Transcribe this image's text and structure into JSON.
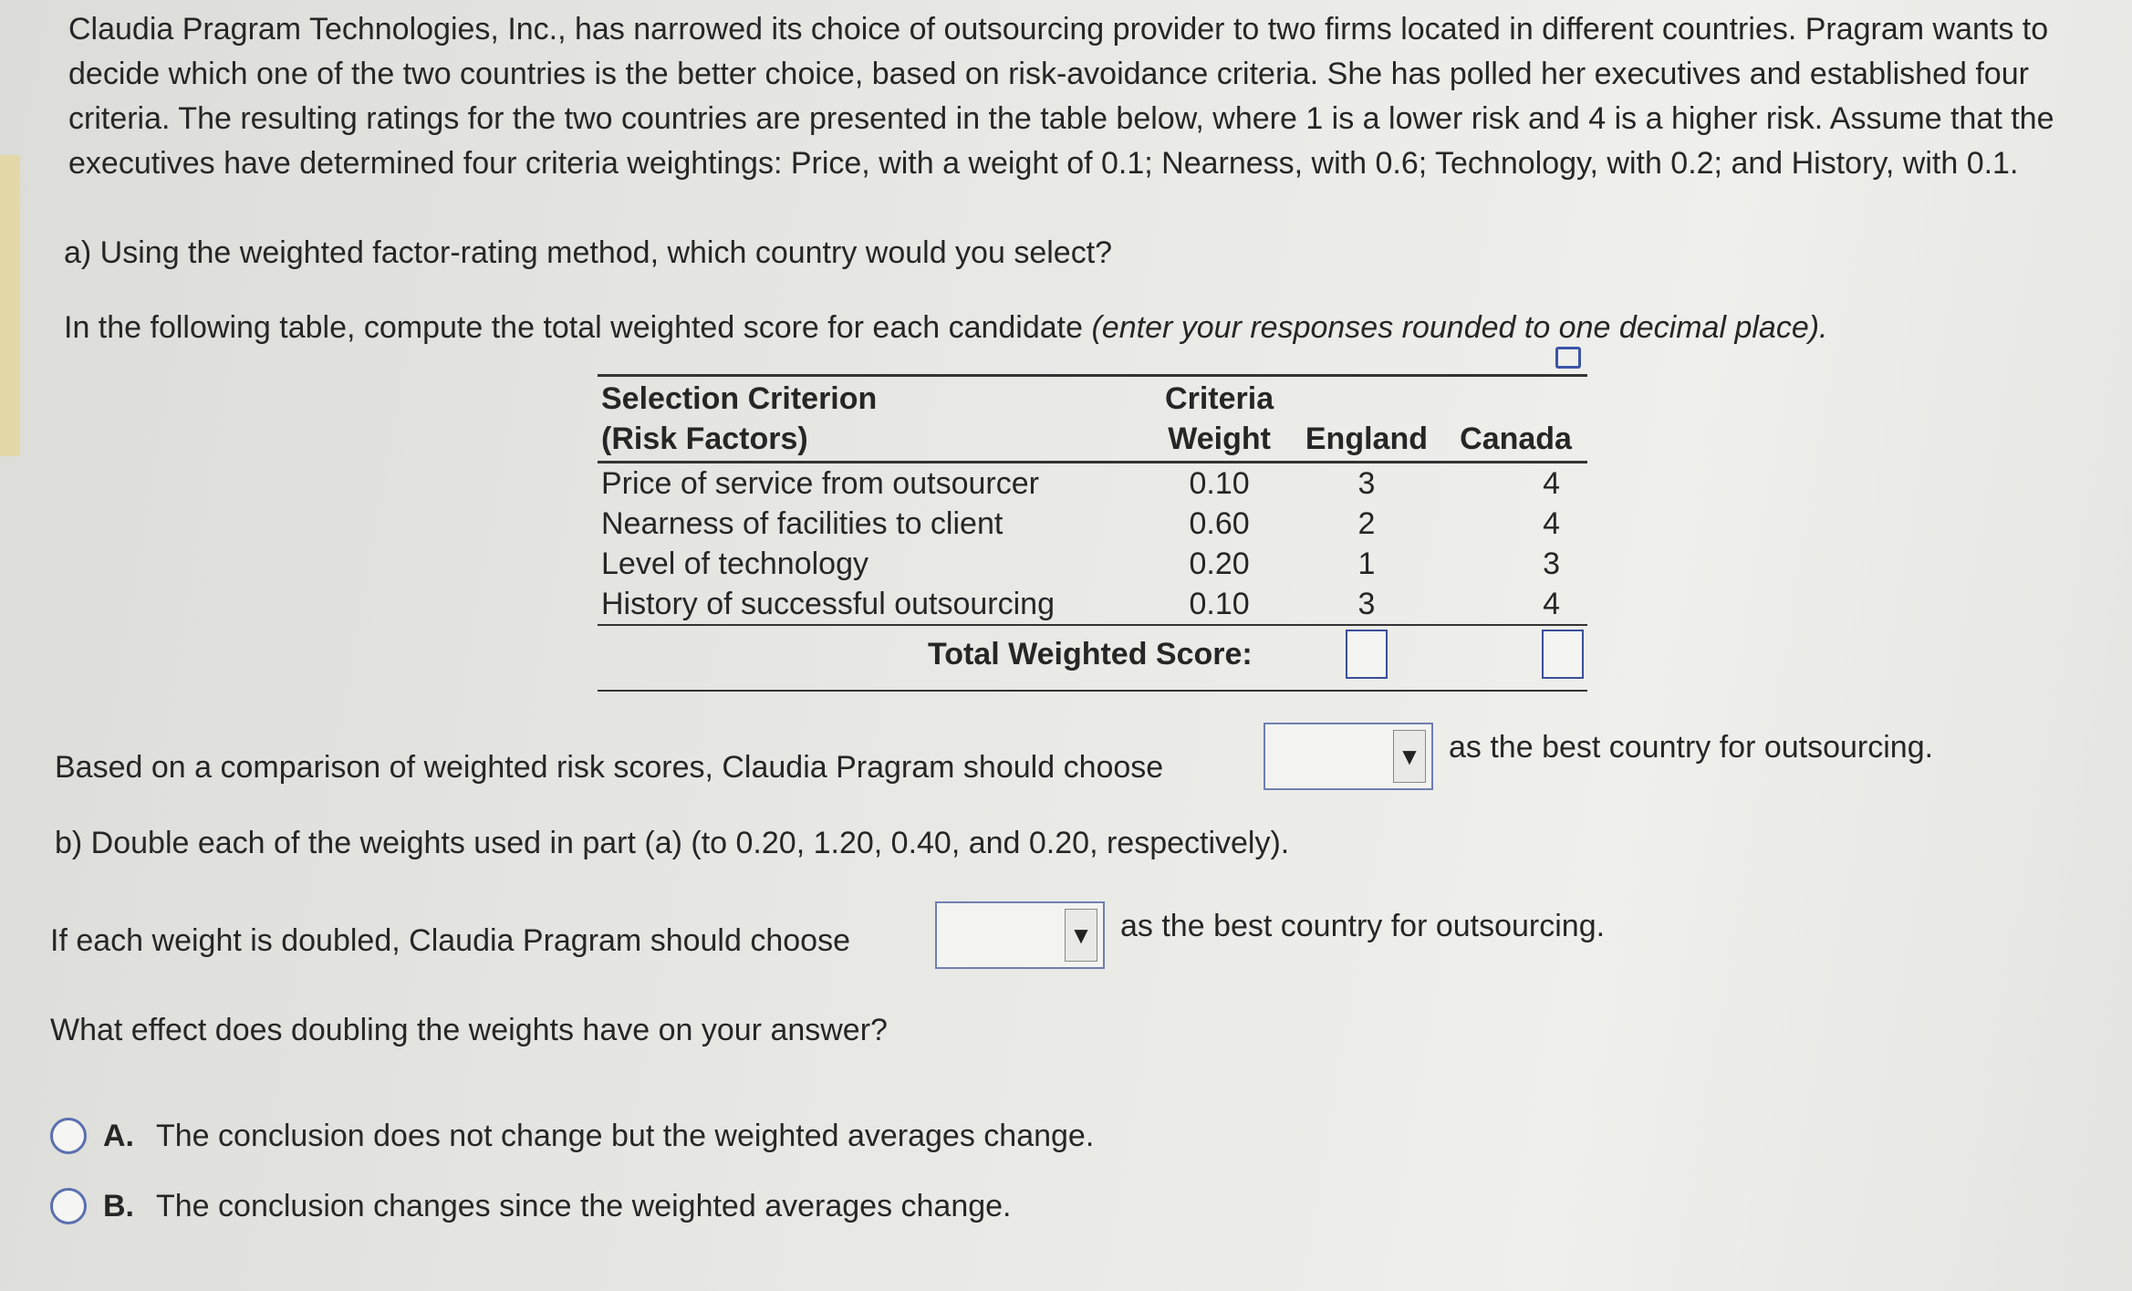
{
  "intro": "Claudia Pragram Technologies, Inc., has narrowed its choice of outsourcing provider to two firms located in different countries. Pragram wants to decide which one of the two countries is the better choice, based on risk-avoidance criteria. She has polled her executives and established four criteria. The resulting ratings for the two countries are presented in the table below, where 1 is a lower risk and 4 is a higher risk. Assume that the executives have determined four criteria weightings: Price, with a weight of 0.1; Nearness, with 0.6; Technology, with 0.2; and History, with 0.1.",
  "part_a": {
    "question": "a) Using the weighted factor-rating method, which country would you select?",
    "instruction": "In the following table, compute the total weighted score for each candidate ",
    "instruction_italic": "(enter your responses rounded to one decimal place).",
    "table": {
      "headers": {
        "criterion_line1": "Selection Criterion",
        "criterion_line2": "(Risk Factors)",
        "weight_line1": "Criteria",
        "weight_line2": "Weight",
        "england": "England",
        "canada": "Canada"
      },
      "rows": [
        {
          "criterion": "Price of service from outsourcer",
          "weight": "0.10",
          "england": "3",
          "canada": "4"
        },
        {
          "criterion": "Nearness of facilities to client",
          "weight": "0.60",
          "england": "2",
          "canada": "4"
        },
        {
          "criterion": "Level  of technology",
          "weight": "0.20",
          "england": "1",
          "canada": "3"
        },
        {
          "criterion": "History of successful outsourcing",
          "weight": "0.10",
          "england": "3",
          "canada": "4"
        }
      ],
      "total_label": "Total Weighted Score:",
      "england_total": "",
      "canada_total": ""
    },
    "choose_before": "Based on a comparison of weighted risk scores, Claudia Pragram should choose",
    "choose_value": "",
    "choose_after": "as the best country for outsourcing."
  },
  "part_b": {
    "question": "b) Double each of the weights used in part (a) (to 0.20, 1.20, 0.40, and 0.20, respectively).",
    "choose_before": "If each weight is doubled, Claudia Pragram should choose",
    "choose_value": "",
    "choose_after": "as the best country for outsourcing.",
    "effect_question": "What effect does doubling the weights have on your answer?",
    "options": [
      {
        "letter": "A.",
        "text": "The conclusion does not change but the weighted averages change."
      },
      {
        "letter": "B.",
        "text": "The conclusion changes since the weighted averages change."
      }
    ]
  },
  "colors": {
    "accent": "#3a55a8",
    "text": "#262626"
  }
}
